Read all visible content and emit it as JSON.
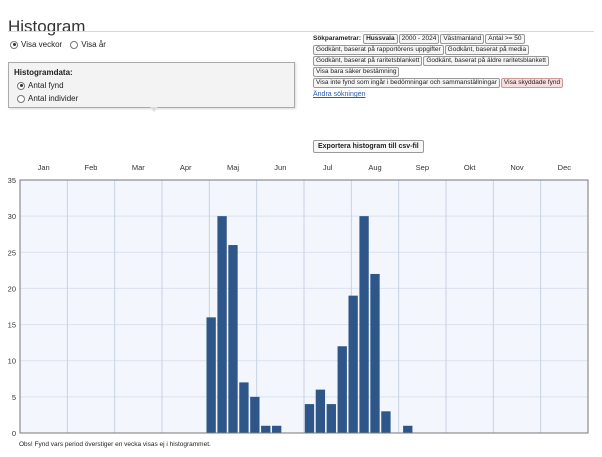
{
  "page": {
    "title": "Histogram"
  },
  "view_toggle": {
    "options": [
      {
        "label": "Visa veckor",
        "checked": true
      },
      {
        "label": "Visa år",
        "checked": false
      }
    ]
  },
  "histogram_data": {
    "heading": "Histogramdata:",
    "options": [
      {
        "label": "Antal fynd",
        "checked": true
      },
      {
        "label": "Antal individer",
        "checked": false
      }
    ]
  },
  "search_params": {
    "label": "Sökparametrar:",
    "tags": [
      {
        "text": "Hussvala",
        "style": "bold"
      },
      {
        "text": "2000 - 2024",
        "style": "normal"
      },
      {
        "text": "Västmanland",
        "style": "normal"
      },
      {
        "text": "Antal >= 50",
        "style": "normal"
      },
      {
        "text": "Godkänt, baserat på rapportörens uppgifter",
        "style": "normal"
      },
      {
        "text": "Godkänt, baserat på media",
        "style": "normal"
      },
      {
        "text": "Godkänt, baserat på raritetsblankett",
        "style": "normal"
      },
      {
        "text": "Godkänt, baserat på äldre raritetsblankett",
        "style": "normal"
      },
      {
        "text": "Visa bara säker bestämning",
        "style": "normal"
      },
      {
        "text": "Visa inte fynd som ingår i bedömningar och sammanställningar",
        "style": "normal"
      },
      {
        "text": "Visa skyddade fynd",
        "style": "red"
      }
    ],
    "change_link": "Ändra sökningen"
  },
  "export_button": "Exportera histogram till csv-fil",
  "footnote": "Obs! Fynd vars period överstiger en vecka visas ej i histogrammet.",
  "colors": {
    "bar": "#2e5688",
    "plot_bg": "#f3f6fc",
    "grid": "#dbe2ee",
    "month_line": "#c8d2e2"
  },
  "chart_data": {
    "type": "bar",
    "title": "",
    "xlabel": "",
    "ylabel": "",
    "months": [
      "Jan",
      "Feb",
      "Mar",
      "Apr",
      "Maj",
      "Jun",
      "Jul",
      "Aug",
      "Sep",
      "Okt",
      "Nov",
      "Dec"
    ],
    "x": [
      1,
      2,
      3,
      4,
      5,
      6,
      7,
      8,
      9,
      10,
      11,
      12,
      13,
      14,
      15,
      16,
      17,
      18,
      19,
      20,
      21,
      22,
      23,
      24,
      25,
      26,
      27,
      28,
      29,
      30,
      31,
      32,
      33,
      34,
      35,
      36,
      37,
      38,
      39,
      40,
      41,
      42,
      43,
      44,
      45,
      46,
      47,
      48,
      49,
      50,
      51,
      52
    ],
    "values": [
      0,
      0,
      0,
      0,
      0,
      0,
      0,
      0,
      0,
      0,
      0,
      0,
      0,
      0,
      0,
      0,
      0,
      16,
      30,
      26,
      7,
      5,
      1,
      1,
      0,
      0,
      4,
      6,
      4,
      12,
      19,
      30,
      22,
      3,
      0,
      1,
      0,
      0,
      0,
      0,
      0,
      0,
      0,
      0,
      0,
      0,
      0,
      0,
      0,
      0,
      0,
      0
    ],
    "ylim": [
      0,
      35
    ],
    "yticks": [
      0,
      5,
      10,
      15,
      20,
      25,
      30,
      35
    ],
    "grid": true
  }
}
